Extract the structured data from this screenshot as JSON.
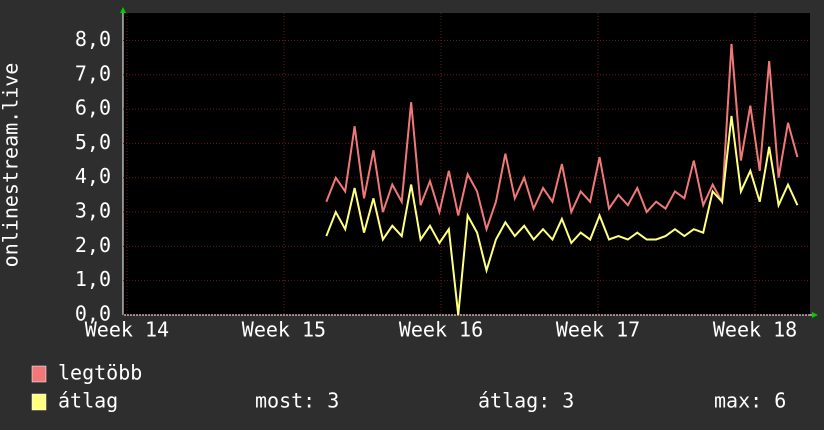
{
  "chart_data": {
    "type": "line",
    "y_label": "onlinestream.live",
    "x": [
      15.27,
      15.33,
      15.39,
      15.45,
      15.51,
      15.57,
      15.63,
      15.69,
      15.75,
      15.81,
      15.87,
      15.93,
      15.99,
      16.05,
      16.11,
      16.17,
      16.23,
      16.29,
      16.35,
      16.41,
      16.47,
      16.53,
      16.59,
      16.65,
      16.71,
      16.77,
      16.83,
      16.89,
      16.95,
      17.01,
      17.07,
      17.13,
      17.19,
      17.25,
      17.31,
      17.37,
      17.43,
      17.49,
      17.55,
      17.61,
      17.67,
      17.73,
      17.79,
      17.85,
      17.91,
      17.97,
      18.03,
      18.09,
      18.15,
      18.21,
      18.27
    ],
    "series": [
      {
        "name": "legtöbb",
        "color": "#f07878",
        "values": [
          3.3,
          4.0,
          3.6,
          5.5,
          3.4,
          4.8,
          3.0,
          3.8,
          3.3,
          6.2,
          3.2,
          3.9,
          3.0,
          4.2,
          2.9,
          4.1,
          3.6,
          2.5,
          3.3,
          4.7,
          3.4,
          4.0,
          3.1,
          3.7,
          3.3,
          4.4,
          3.0,
          3.6,
          3.3,
          4.6,
          3.1,
          3.5,
          3.2,
          3.7,
          3.0,
          3.3,
          3.1,
          3.6,
          3.4,
          4.5,
          3.2,
          3.8,
          3.3,
          7.9,
          4.5,
          6.1,
          4.2,
          7.4,
          4.0,
          5.6,
          4.6
        ]
      },
      {
        "name": "átlag",
        "color": "#ffff80",
        "values": [
          2.3,
          3.0,
          2.5,
          3.7,
          2.4,
          3.4,
          2.2,
          2.6,
          2.3,
          3.8,
          2.2,
          2.6,
          2.1,
          2.5,
          0.0,
          2.9,
          2.4,
          1.3,
          2.2,
          2.7,
          2.3,
          2.6,
          2.2,
          2.5,
          2.2,
          2.8,
          2.1,
          2.4,
          2.2,
          2.9,
          2.2,
          2.3,
          2.2,
          2.4,
          2.2,
          2.2,
          2.3,
          2.5,
          2.3,
          2.5,
          2.4,
          3.6,
          3.3,
          5.8,
          3.6,
          4.2,
          3.3,
          4.9,
          3.2,
          3.8,
          3.2
        ]
      }
    ],
    "xlim": [
      13.975,
      18.35
    ],
    "xticks": [
      {
        "value": 14,
        "label": "Week 14"
      },
      {
        "value": 15,
        "label": "Week 15"
      },
      {
        "value": 16,
        "label": "Week 16"
      },
      {
        "value": 17,
        "label": "Week 17"
      },
      {
        "value": 18,
        "label": "Week 18"
      }
    ],
    "ylim": [
      0,
      8.8
    ],
    "yticks": [
      {
        "value": 0,
        "label": "0,0"
      },
      {
        "value": 1,
        "label": "1,0"
      },
      {
        "value": 2,
        "label": "2,0"
      },
      {
        "value": 3,
        "label": "3,0"
      },
      {
        "value": 4,
        "label": "4,0"
      },
      {
        "value": 5,
        "label": "5,0"
      },
      {
        "value": 6,
        "label": "6,0"
      },
      {
        "value": 7,
        "label": "7,0"
      },
      {
        "value": 8,
        "label": "8,0"
      }
    ],
    "grid": true,
    "stats": [
      "most: 3",
      "átlag: 3",
      "max: 6"
    ]
  }
}
